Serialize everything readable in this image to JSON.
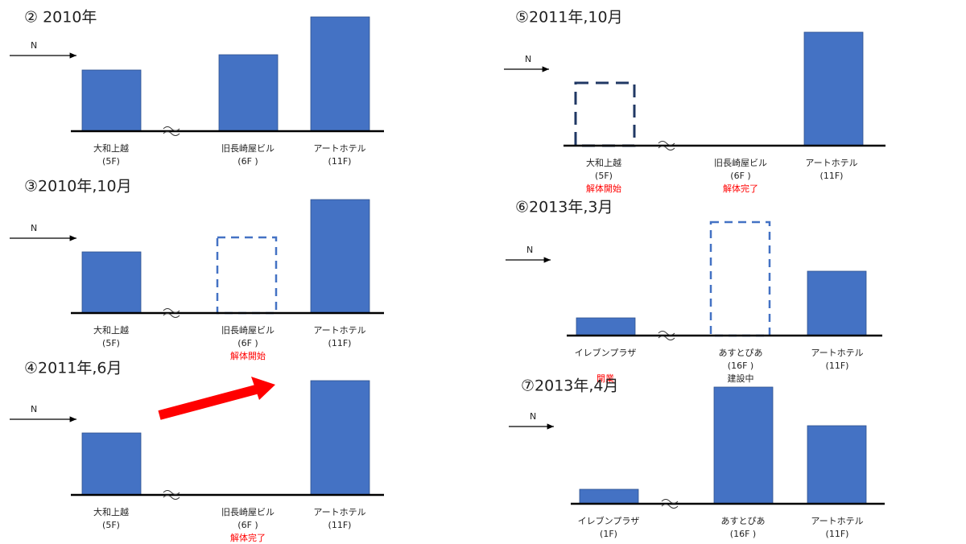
{
  "panels": [
    {
      "title": "② 2010年",
      "arrow_label": "N",
      "buildings": [
        {
          "name": "大和上越",
          "floors": "(5F)"
        },
        {
          "name": "旧長崎屋ビル",
          "floors": "(6F )"
        },
        {
          "name": "アートホテル",
          "floors": "(11F)"
        }
      ]
    },
    {
      "title": "③2010年,10月",
      "arrow_label": "N",
      "buildings": [
        {
          "name": "大和上越",
          "floors": "(5F)"
        },
        {
          "name": "旧長崎屋ビル",
          "floors": "(6F )",
          "note": "解体開始"
        },
        {
          "name": "アートホテル",
          "floors": "(11F)"
        }
      ]
    },
    {
      "title": "④2011年,6月",
      "arrow_label": "N",
      "buildings": [
        {
          "name": "大和上越",
          "floors": "(5F)"
        },
        {
          "name": "旧長崎屋ビル",
          "floors": "(6F )",
          "note": "解体完了"
        },
        {
          "name": "アートホテル",
          "floors": "(11F)"
        }
      ]
    },
    {
      "title": "⑤2011年,10月",
      "arrow_label": "N",
      "buildings": [
        {
          "name": "大和上越",
          "floors": "(5F)",
          "note": "解体開始"
        },
        {
          "name": "旧長崎屋ビル",
          "floors": "(6F )",
          "note": "解体完了"
        },
        {
          "name": "アートホテル",
          "floors": "(11F)"
        }
      ]
    },
    {
      "title": "⑥2013年,3月",
      "arrow_label": "N",
      "buildings": [
        {
          "name": "イレブンプラザ",
          "floors": "",
          "note": "開業"
        },
        {
          "name": "あすとぴあ",
          "floors": "(16F )",
          "note": "建設中"
        },
        {
          "name": "アートホテル",
          "floors": "(11F)"
        }
      ]
    },
    {
      "title": "⑦2013年,4月",
      "arrow_label": "N",
      "buildings": [
        {
          "name": "イレブンプラザ",
          "floors": "(1F)"
        },
        {
          "name": "あすとぴあ",
          "floors": "(16F )"
        },
        {
          "name": "アートホテル",
          "floors": "(11F)"
        }
      ]
    }
  ]
}
